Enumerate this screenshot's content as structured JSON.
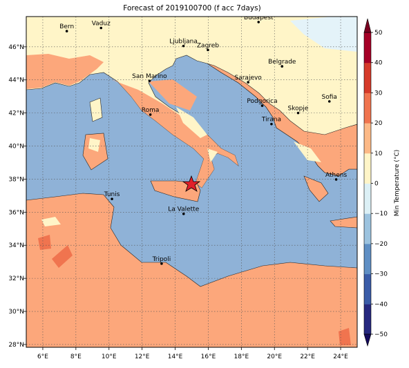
{
  "title": "Forecast of 2019100700 (f acc 7days)",
  "map": {
    "lonlim": [
      5,
      25
    ],
    "latlim": [
      27.83,
      47.83
    ],
    "lonticks": [
      {
        "value": 6,
        "label": "6°E"
      },
      {
        "value": 8,
        "label": "8°E"
      },
      {
        "value": 10,
        "label": "10°E"
      },
      {
        "value": 12,
        "label": "12°E"
      },
      {
        "value": 14,
        "label": "14°E"
      },
      {
        "value": 16,
        "label": "16°E"
      },
      {
        "value": 18,
        "label": "18°E"
      },
      {
        "value": 20,
        "label": "20°E"
      },
      {
        "value": 22,
        "label": "22°E"
      },
      {
        "value": 24,
        "label": "24°E"
      }
    ],
    "latticks": [
      {
        "value": 28,
        "label": "28°N"
      },
      {
        "value": 30,
        "label": "30°N"
      },
      {
        "value": 32,
        "label": "32°N"
      },
      {
        "value": 34,
        "label": "34°N"
      },
      {
        "value": 36,
        "label": "36°N"
      },
      {
        "value": 38,
        "label": "38°N"
      },
      {
        "value": 40,
        "label": "40°N"
      },
      {
        "value": 42,
        "label": "42°N"
      },
      {
        "value": 44,
        "label": "44°N"
      },
      {
        "value": 46,
        "label": "46°N"
      }
    ]
  },
  "cities": [
    {
      "label": "Bern",
      "lon": 7.45,
      "lat": 46.95
    },
    {
      "label": "Vaduz",
      "lon": 9.52,
      "lat": 47.14
    },
    {
      "label": "Ljubljana",
      "lon": 14.5,
      "lat": 46.05
    },
    {
      "label": "Zagreb",
      "lon": 15.98,
      "lat": 45.81
    },
    {
      "label": "Budapest",
      "lon": 19.04,
      "lat": 47.5
    },
    {
      "label": "Belgrade",
      "lon": 20.46,
      "lat": 44.82
    },
    {
      "label": "Sarajevo",
      "lon": 18.41,
      "lat": 43.86
    },
    {
      "label": "San Marino",
      "lon": 12.45,
      "lat": 43.94
    },
    {
      "label": "Roma",
      "lon": 12.5,
      "lat": 41.9
    },
    {
      "label": "Podgorica",
      "lon": 19.26,
      "lat": 42.44
    },
    {
      "label": "Sofia",
      "lon": 23.32,
      "lat": 42.7
    },
    {
      "label": "Skopje",
      "lon": 21.43,
      "lat": 42.0
    },
    {
      "label": "Tirana",
      "lon": 19.82,
      "lat": 41.33
    },
    {
      "label": "Athens",
      "lon": 23.73,
      "lat": 37.98
    },
    {
      "label": "Tunis",
      "lon": 10.18,
      "lat": 36.8
    },
    {
      "label": "La Valette",
      "lon": 14.51,
      "lat": 35.9
    },
    {
      "label": "Tripoli",
      "lon": 13.18,
      "lat": 32.89
    }
  ],
  "colorbar": {
    "label": "Min Temperature (°C)",
    "lim": [
      -50,
      50
    ],
    "ticks": [
      {
        "value": -50,
        "label": "−50"
      },
      {
        "value": -40,
        "label": "−40"
      },
      {
        "value": -30,
        "label": "−30"
      },
      {
        "value": -20,
        "label": "−20"
      },
      {
        "value": -10,
        "label": "−10"
      },
      0,
      10,
      20,
      30,
      40,
      50
    ],
    "colors": [
      "#26287f",
      "#3a5ca8",
      "#5f8fc4",
      "#9cc3df",
      "#dcf0f6",
      "#fff5c8",
      "#fcb987",
      "#f0744f",
      "#d53a2a",
      "#a50026"
    ],
    "under": "#140a5c",
    "over": "#7a0020"
  }
}
